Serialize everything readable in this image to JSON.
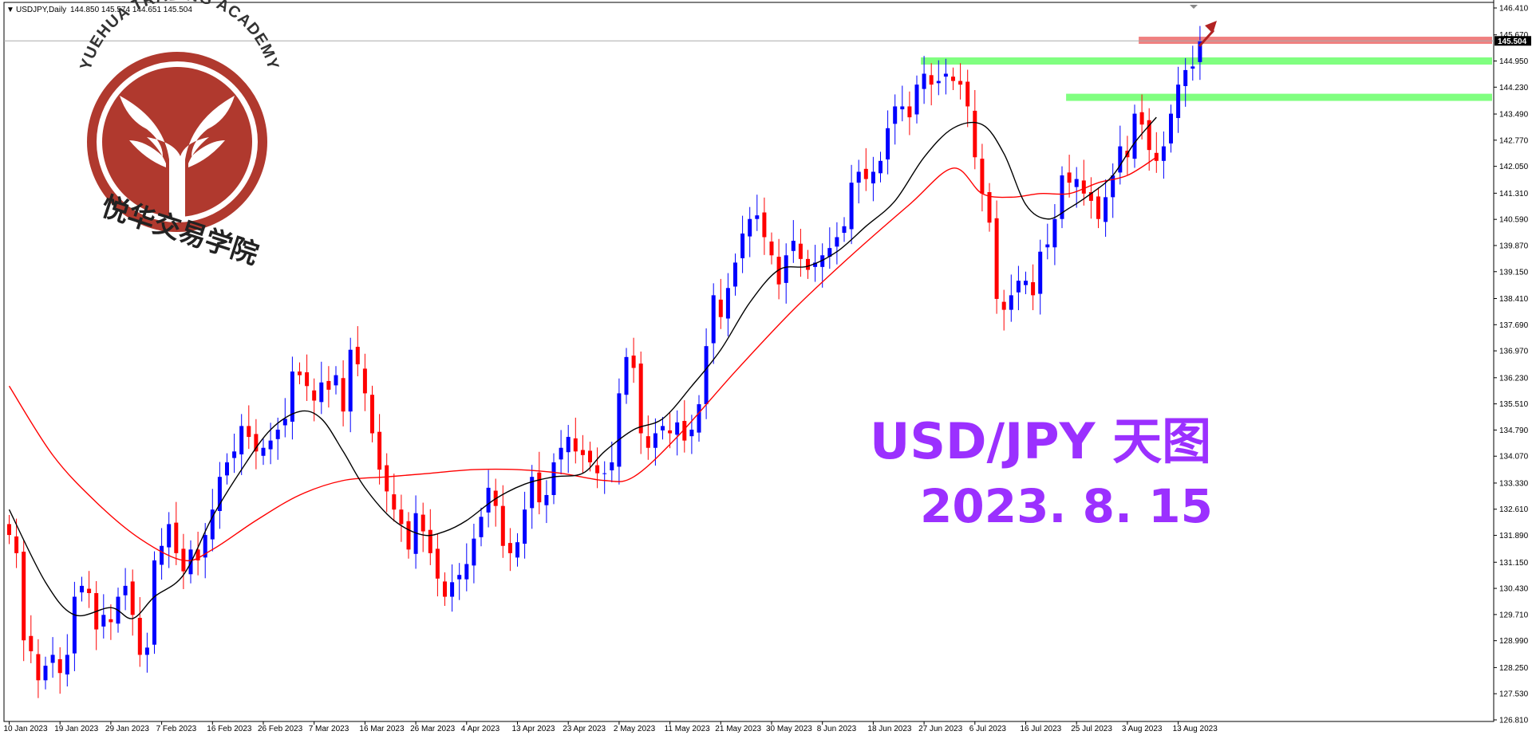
{
  "header": {
    "symbol": "USDJPY,Daily",
    "ohlc": "144.850 145.574 144.651 145.504"
  },
  "logo": {
    "text_en": "YUEHUA TRADING ACADEMY",
    "text_cn": "悦华交易学院",
    "color": "#b0392e"
  },
  "annotation": {
    "title": "USD/JPY 天图",
    "date": "2023. 8. 15",
    "color": "#9b30ff"
  },
  "current_price_label": "145.504",
  "chart_data": {
    "type": "candlestick",
    "title": "",
    "xlabel": "",
    "ylabel": "",
    "ylim": [
      126.81,
      146.41
    ],
    "y_ticks": [
      "146.410",
      "145.670",
      "144.950",
      "144.230",
      "143.490",
      "142.770",
      "142.050",
      "141.310",
      "140.590",
      "139.870",
      "139.150",
      "138.410",
      "137.690",
      "136.970",
      "136.230",
      "135.510",
      "134.790",
      "134.070",
      "133.330",
      "132.610",
      "131.890",
      "131.150",
      "130.430",
      "129.710",
      "128.990",
      "128.250",
      "127.530",
      "126.810"
    ],
    "x_ticks": [
      {
        "label": "10 Jan 2023",
        "bar": 0
      },
      {
        "label": "19 Jan 2023",
        "bar": 7
      },
      {
        "label": "29 Jan 2023",
        "bar": 14
      },
      {
        "label": "7 Feb 2023",
        "bar": 21
      },
      {
        "label": "16 Feb 2023",
        "bar": 28
      },
      {
        "label": "26 Feb 2023",
        "bar": 35
      },
      {
        "label": "7 Mar 2023",
        "bar": 42
      },
      {
        "label": "16 Mar 2023",
        "bar": 49
      },
      {
        "label": "26 Mar 2023",
        "bar": 56
      },
      {
        "label": "4 Apr 2023",
        "bar": 63
      },
      {
        "label": "13 Apr 2023",
        "bar": 70
      },
      {
        "label": "23 Apr 2023",
        "bar": 77
      },
      {
        "label": "2 May 2023",
        "bar": 84
      },
      {
        "label": "11 May 2023",
        "bar": 91
      },
      {
        "label": "21 May 2023",
        "bar": 98
      },
      {
        "label": "30 May 2023",
        "bar": 105
      },
      {
        "label": "8 Jun 2023",
        "bar": 112
      },
      {
        "label": "18 Jun 2023",
        "bar": 119
      },
      {
        "label": "27 Jun 2023",
        "bar": 126
      },
      {
        "label": "6 Jul 2023",
        "bar": 133
      },
      {
        "label": "16 Jul 2023",
        "bar": 140
      },
      {
        "label": "25 Jul 2023",
        "bar": 147
      },
      {
        "label": "3 Aug 2023",
        "bar": 154
      },
      {
        "label": "13 Aug 2023",
        "bar": 161
      }
    ],
    "up_color": "#0000ff",
    "down_color": "#ff0000",
    "close": [
      131.9,
      131.4,
      129.0,
      128.7,
      127.9,
      128.3,
      128.6,
      128.1,
      128.6,
      130.2,
      130.5,
      130.3,
      129.3,
      129.7,
      129.5,
      130.2,
      130.5,
      129.7,
      128.6,
      128.8,
      131.2,
      131.6,
      132.2,
      131.4,
      130.9,
      131.5,
      131.2,
      131.9,
      132.6,
      133.5,
      133.9,
      134.2,
      134.9,
      134.6,
      134.2,
      134.3,
      134.5,
      134.8,
      135.1,
      136.4,
      136.3,
      136.0,
      135.6,
      136.1,
      135.9,
      136.3,
      135.3,
      137.0,
      136.6,
      135.8,
      134.7,
      133.7,
      133.1,
      132.6,
      132.2,
      131.5,
      132.5,
      132.0,
      131.4,
      130.7,
      130.2,
      130.6,
      130.8,
      131.1,
      131.8,
      132.4,
      133.2,
      132.7,
      131.6,
      131.4,
      131.7,
      132.6,
      133.5,
      132.8,
      133.0,
      133.9,
      134.3,
      134.6,
      134.2,
      134.1,
      133.9,
      133.6,
      133.6,
      133.9,
      135.8,
      136.8,
      136.5,
      134.7,
      134.3,
      134.7,
      134.9,
      134.7,
      135.0,
      134.5,
      134.8,
      135.5,
      137.1,
      138.5,
      137.9,
      138.7,
      139.4,
      140.2,
      140.6,
      140.7,
      140.1,
      139.6,
      138.8,
      139.6,
      140.0,
      139.5,
      139.2,
      139.4,
      139.6,
      139.8,
      140.1,
      140.4,
      141.6,
      141.9,
      141.7,
      141.9,
      142.2,
      143.1,
      143.7,
      143.7,
      143.4,
      144.3,
      144.6,
      144.3,
      144.4,
      144.6,
      144.4,
      144.3,
      143.7,
      142.3,
      141.3,
      140.5,
      138.4,
      138.1,
      138.5,
      138.9,
      138.9,
      138.5,
      139.7,
      139.9,
      140.6,
      141.8,
      141.6,
      141.7,
      141.3,
      141.1,
      140.6,
      141.2,
      141.8,
      142.6,
      142.3,
      143.5,
      143.2,
      142.5,
      142.2,
      142.6,
      143.5,
      144.3,
      144.7,
      144.8,
      145.504
    ],
    "ma_fast_color": "#000000",
    "ma_slow_color": "#ff0000",
    "ma_fast": [
      [
        0,
        132.6
      ],
      [
        5,
        130.6
      ],
      [
        9,
        129.7
      ],
      [
        14,
        129.9
      ],
      [
        17,
        129.6
      ],
      [
        20,
        130.2
      ],
      [
        24,
        130.8
      ],
      [
        28,
        132.4
      ],
      [
        32,
        133.7
      ],
      [
        36,
        134.8
      ],
      [
        40,
        135.3
      ],
      [
        43,
        135.1
      ],
      [
        46,
        134.2
      ],
      [
        49,
        133.2
      ],
      [
        53,
        132.3
      ],
      [
        57,
        131.9
      ],
      [
        60,
        132.0
      ],
      [
        63,
        132.3
      ],
      [
        67,
        132.9
      ],
      [
        71,
        133.3
      ],
      [
        75,
        133.5
      ],
      [
        79,
        133.6
      ],
      [
        82,
        134.2
      ],
      [
        86,
        134.8
      ],
      [
        90,
        135.1
      ],
      [
        94,
        136.0
      ],
      [
        98,
        137.0
      ],
      [
        102,
        138.3
      ],
      [
        106,
        139.2
      ],
      [
        110,
        139.3
      ],
      [
        114,
        139.7
      ],
      [
        118,
        140.4
      ],
      [
        122,
        141.1
      ],
      [
        126,
        142.3
      ],
      [
        130,
        143.1
      ],
      [
        134,
        143.2
      ],
      [
        137,
        142.4
      ],
      [
        140,
        141.0
      ],
      [
        143,
        140.6
      ],
      [
        146,
        140.9
      ],
      [
        149,
        141.3
      ],
      [
        152,
        141.8
      ],
      [
        155,
        142.7
      ],
      [
        158,
        143.4
      ]
    ],
    "ma_slow": [
      [
        0,
        136.0
      ],
      [
        6,
        134.1
      ],
      [
        12,
        132.8
      ],
      [
        18,
        131.8
      ],
      [
        24,
        131.2
      ],
      [
        28,
        131.5
      ],
      [
        34,
        132.3
      ],
      [
        40,
        133.0
      ],
      [
        46,
        133.4
      ],
      [
        52,
        133.5
      ],
      [
        58,
        133.6
      ],
      [
        64,
        133.7
      ],
      [
        70,
        133.7
      ],
      [
        76,
        133.6
      ],
      [
        82,
        133.4
      ],
      [
        86,
        133.5
      ],
      [
        92,
        134.6
      ],
      [
        100,
        136.4
      ],
      [
        108,
        138.1
      ],
      [
        116,
        139.6
      ],
      [
        124,
        141.0
      ],
      [
        130,
        142.0
      ],
      [
        134,
        141.3
      ],
      [
        138,
        141.2
      ],
      [
        142,
        141.3
      ],
      [
        146,
        141.3
      ],
      [
        150,
        141.6
      ],
      [
        154,
        141.8
      ],
      [
        158,
        142.3
      ]
    ],
    "zones": [
      {
        "from_bar": 126,
        "y_center": 144.95,
        "color": "#80ff80"
      },
      {
        "from_bar": 146,
        "y_center": 143.95,
        "color": "#80ff80"
      },
      {
        "from_bar": 156,
        "y_center": 145.52,
        "color": "#f08080"
      }
    ]
  }
}
